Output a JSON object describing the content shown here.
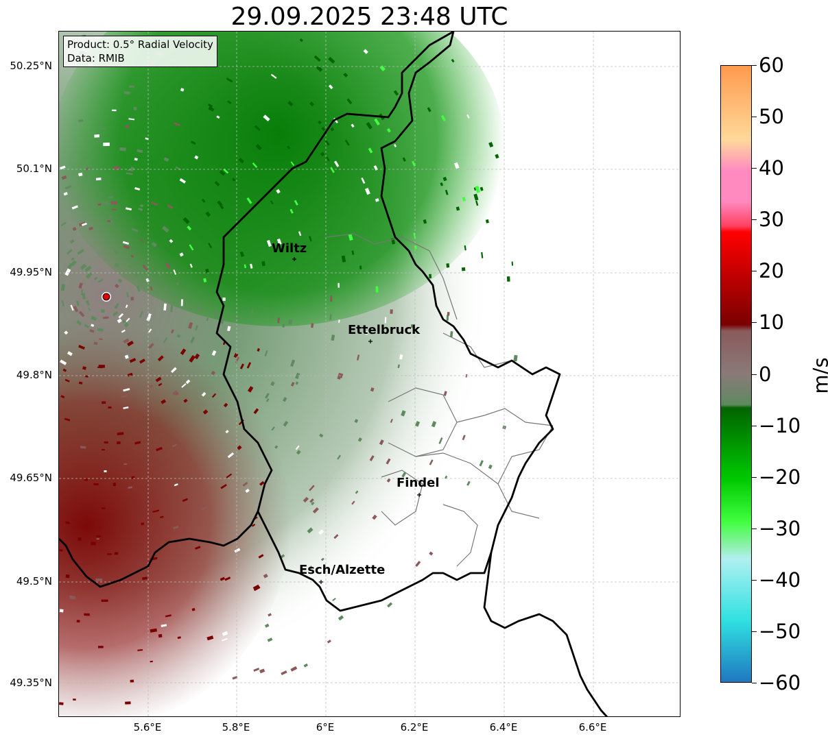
{
  "title": "29.09.2025 23:48 UTC",
  "info": {
    "product": "Product: 0.5° Radial Velocity",
    "data_source": "Data: RMIB"
  },
  "axes": {
    "lat_ticks": [
      "50.25°N",
      "50.1°N",
      "49.95°N",
      "49.8°N",
      "49.65°N",
      "49.5°N",
      "49.35°N"
    ],
    "lon_ticks": [
      "5.6°E",
      "5.8°E",
      "6°E",
      "6.2°E",
      "6.4°E",
      "6.6°E"
    ]
  },
  "cities": [
    {
      "name": "Wiltz"
    },
    {
      "name": "Ettelbruck"
    },
    {
      "name": "Findel"
    },
    {
      "name": "Esch/Alzette"
    }
  ],
  "colorbar": {
    "unit": "m/s",
    "range": [
      -60,
      60
    ],
    "ticks": [
      "60",
      "50",
      "40",
      "30",
      "20",
      "10",
      "0",
      "−10",
      "−20",
      "−30",
      "−40",
      "−50",
      "−60"
    ],
    "colors": {
      "top_orange": "#ff9a4d",
      "light_orange": "#ffd99a",
      "pink": "#ff8ac0",
      "red": "#ff0000",
      "dark_red": "#7a0000",
      "brown_gray": "#8a5a5a",
      "gray": "#8a7a7a",
      "gray_green": "#5e8a5e",
      "dark_green": "#006400",
      "green": "#00c800",
      "bright_green": "#40ff40",
      "light_cyan": "#b0f0f0",
      "cyan": "#30e0e0",
      "blue": "#1f78c0"
    }
  }
}
